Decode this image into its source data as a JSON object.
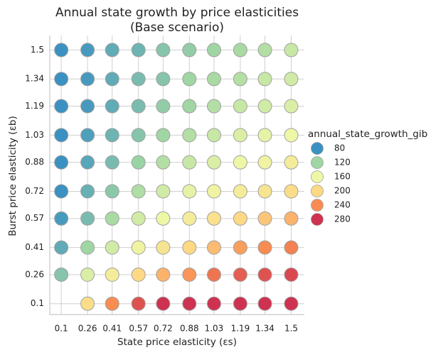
{
  "chart_data": {
    "type": "bubble-grid",
    "title": "Annual state growth by price elasticities",
    "subtitle": "(Base scenario)",
    "x_label": "State price elasticity (εs)",
    "y_label": "Burst price elasticity (εb)",
    "x": [
      0.1,
      0.26,
      0.41,
      0.57,
      0.72,
      0.88,
      1.03,
      1.19,
      1.34,
      1.5
    ],
    "y": [
      1.5,
      1.34,
      1.19,
      1.03,
      0.88,
      0.72,
      0.57,
      0.41,
      0.26,
      0.1
    ],
    "values": [
      [
        80,
        85,
        95,
        100,
        110,
        115,
        120,
        125,
        130,
        140
      ],
      [
        75,
        85,
        95,
        105,
        110,
        120,
        125,
        130,
        140,
        145
      ],
      [
        75,
        85,
        95,
        105,
        115,
        120,
        130,
        140,
        145,
        150
      ],
      [
        75,
        88,
        100,
        110,
        120,
        130,
        140,
        150,
        155,
        160
      ],
      [
        78,
        92,
        105,
        118,
        130,
        140,
        150,
        160,
        165,
        175
      ],
      [
        80,
        98,
        112,
        128,
        145,
        155,
        165,
        175,
        185,
        195
      ],
      [
        85,
        105,
        125,
        145,
        160,
        175,
        190,
        200,
        210,
        220
      ],
      [
        95,
        120,
        145,
        165,
        185,
        200,
        215,
        230,
        240,
        245
      ],
      [
        110,
        150,
        175,
        200,
        220,
        235,
        250,
        260,
        265,
        270
      ],
      [
        null,
        195,
        240,
        265,
        280,
        290,
        295,
        300,
        305,
        305
      ]
    ],
    "xlim": [
      0.03,
      1.58
    ],
    "ylim": [
      0.04,
      1.58
    ],
    "xticks": [
      0.1,
      0.26,
      0.41,
      0.57,
      0.72,
      0.88,
      1.03,
      1.19,
      1.34,
      1.5
    ],
    "yticks": [
      0.1,
      0.26,
      0.41,
      0.57,
      0.72,
      0.88,
      1.03,
      1.19,
      1.34,
      1.5
    ],
    "grid": true,
    "legend": {
      "title": "annual_state_growth_gib",
      "items": [
        {
          "value": 80,
          "color": "#3a91c2"
        },
        {
          "value": 120,
          "color": "#9fd6a3"
        },
        {
          "value": 160,
          "color": "#eef7a6"
        },
        {
          "value": 200,
          "color": "#fdd985"
        },
        {
          "value": 240,
          "color": "#f88c51"
        },
        {
          "value": 280,
          "color": "#cf3150"
        }
      ]
    }
  }
}
